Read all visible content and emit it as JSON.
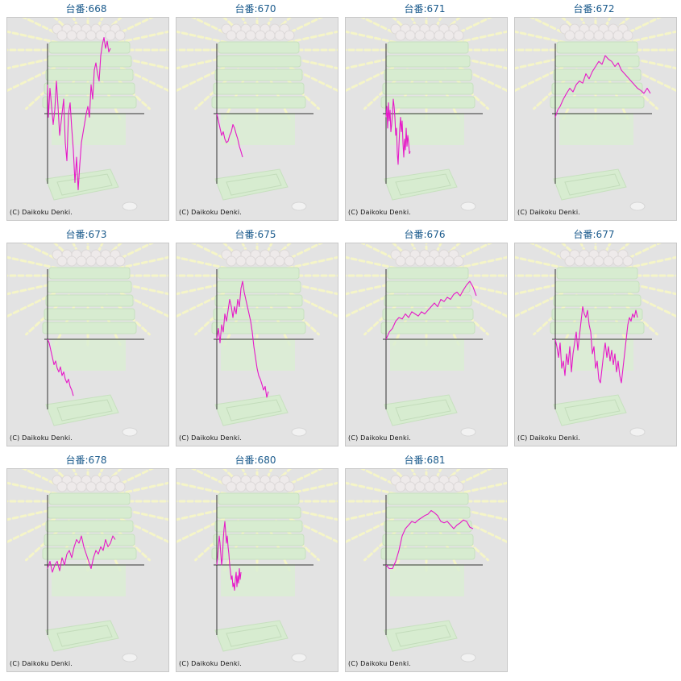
{
  "copyright": "(C) Daikoku Denki.",
  "colors": {
    "line": "#e619c8",
    "title": "#1a5a8c",
    "axis": "#333333",
    "background": "#e3e3e3"
  },
  "charts": [
    {
      "title": "台番:668"
    },
    {
      "title": "台番:670"
    },
    {
      "title": "台番:671"
    },
    {
      "title": "台番:672"
    },
    {
      "title": "台番:673"
    },
    {
      "title": "台番:675"
    },
    {
      "title": "台番:676"
    },
    {
      "title": "台番:677"
    },
    {
      "title": "台番:678"
    },
    {
      "title": "台番:680"
    },
    {
      "title": "台番:681"
    }
  ],
  "chart_data": [
    {
      "type": "line",
      "title": "台番:668",
      "grid": false,
      "points": [
        [
          0,
          40
        ],
        [
          1,
          -5
        ],
        [
          3,
          35
        ],
        [
          5,
          10
        ],
        [
          7,
          -15
        ],
        [
          9,
          5
        ],
        [
          11,
          45
        ],
        [
          13,
          10
        ],
        [
          15,
          -30
        ],
        [
          17,
          -10
        ],
        [
          20,
          20
        ],
        [
          22,
          -40
        ],
        [
          24,
          -65
        ],
        [
          26,
          0
        ],
        [
          28,
          15
        ],
        [
          30,
          -20
        ],
        [
          32,
          -50
        ],
        [
          34,
          -95
        ],
        [
          36,
          -60
        ],
        [
          38,
          -105
        ],
        [
          40,
          -70
        ],
        [
          42,
          -40
        ],
        [
          45,
          -20
        ],
        [
          48,
          0
        ],
        [
          50,
          10
        ],
        [
          52,
          -5
        ],
        [
          54,
          40
        ],
        [
          56,
          20
        ],
        [
          58,
          60
        ],
        [
          60,
          70
        ],
        [
          62,
          55
        ],
        [
          64,
          45
        ],
        [
          66,
          80
        ],
        [
          68,
          95
        ],
        [
          70,
          105
        ],
        [
          72,
          90
        ],
        [
          74,
          100
        ],
        [
          76,
          85
        ],
        [
          78,
          90
        ]
      ]
    },
    {
      "type": "line",
      "title": "台番:670",
      "grid": false,
      "points": [
        [
          0,
          0
        ],
        [
          2,
          -10
        ],
        [
          4,
          -20
        ],
        [
          6,
          -30
        ],
        [
          8,
          -25
        ],
        [
          10,
          -35
        ],
        [
          12,
          -40
        ],
        [
          14,
          -38
        ],
        [
          16,
          -30
        ],
        [
          18,
          -25
        ],
        [
          20,
          -15
        ],
        [
          22,
          -20
        ],
        [
          24,
          -28
        ],
        [
          26,
          -35
        ],
        [
          28,
          -45
        ],
        [
          30,
          -52
        ],
        [
          32,
          -60
        ]
      ]
    },
    {
      "type": "line",
      "title": "台番:671",
      "grid": false,
      "points": [
        [
          0,
          -5
        ],
        [
          1,
          10
        ],
        [
          2,
          -20
        ],
        [
          3,
          15
        ],
        [
          4,
          -10
        ],
        [
          5,
          5
        ],
        [
          6,
          -25
        ],
        [
          7,
          -15
        ],
        [
          8,
          0
        ],
        [
          9,
          20
        ],
        [
          10,
          10
        ],
        [
          11,
          -5
        ],
        [
          12,
          -30
        ],
        [
          13,
          -20
        ],
        [
          14,
          -55
        ],
        [
          15,
          -70
        ],
        [
          16,
          -45
        ],
        [
          17,
          -20
        ],
        [
          18,
          -5
        ],
        [
          19,
          -25
        ],
        [
          20,
          -10
        ],
        [
          21,
          -40
        ],
        [
          22,
          -60
        ],
        [
          23,
          -35
        ],
        [
          24,
          -50
        ],
        [
          25,
          -20
        ],
        [
          26,
          -45
        ],
        [
          27,
          -30
        ],
        [
          28,
          -40
        ],
        [
          29,
          -55
        ],
        [
          30,
          -52
        ]
      ]
    },
    {
      "type": "line",
      "title": "台番:672",
      "grid": false,
      "points": [
        [
          0,
          -5
        ],
        [
          3,
          5
        ],
        [
          6,
          10
        ],
        [
          10,
          20
        ],
        [
          14,
          28
        ],
        [
          18,
          35
        ],
        [
          22,
          30
        ],
        [
          26,
          40
        ],
        [
          30,
          45
        ],
        [
          34,
          42
        ],
        [
          38,
          55
        ],
        [
          42,
          48
        ],
        [
          46,
          58
        ],
        [
          50,
          65
        ],
        [
          54,
          72
        ],
        [
          58,
          68
        ],
        [
          62,
          80
        ],
        [
          66,
          75
        ],
        [
          70,
          72
        ],
        [
          74,
          65
        ],
        [
          78,
          70
        ],
        [
          82,
          60
        ],
        [
          86,
          55
        ],
        [
          90,
          50
        ],
        [
          94,
          45
        ],
        [
          98,
          40
        ],
        [
          102,
          35
        ],
        [
          106,
          32
        ],
        [
          110,
          28
        ],
        [
          114,
          35
        ],
        [
          118,
          28
        ]
      ]
    },
    {
      "type": "line",
      "title": "台番:673",
      "grid": false,
      "points": [
        [
          0,
          0
        ],
        [
          2,
          -5
        ],
        [
          4,
          -15
        ],
        [
          6,
          -25
        ],
        [
          8,
          -35
        ],
        [
          10,
          -30
        ],
        [
          12,
          -40
        ],
        [
          14,
          -45
        ],
        [
          16,
          -38
        ],
        [
          18,
          -50
        ],
        [
          20,
          -45
        ],
        [
          22,
          -55
        ],
        [
          24,
          -60
        ],
        [
          26,
          -55
        ],
        [
          28,
          -65
        ],
        [
          30,
          -70
        ],
        [
          32,
          -78
        ]
      ]
    },
    {
      "type": "line",
      "title": "台番:675",
      "grid": false,
      "points": [
        [
          0,
          0
        ],
        [
          2,
          15
        ],
        [
          4,
          -5
        ],
        [
          6,
          20
        ],
        [
          8,
          10
        ],
        [
          10,
          35
        ],
        [
          12,
          25
        ],
        [
          14,
          40
        ],
        [
          16,
          55
        ],
        [
          18,
          45
        ],
        [
          20,
          30
        ],
        [
          22,
          45
        ],
        [
          24,
          35
        ],
        [
          26,
          55
        ],
        [
          28,
          45
        ],
        [
          30,
          70
        ],
        [
          32,
          80
        ],
        [
          34,
          65
        ],
        [
          36,
          55
        ],
        [
          38,
          45
        ],
        [
          40,
          35
        ],
        [
          42,
          25
        ],
        [
          44,
          10
        ],
        [
          46,
          -10
        ],
        [
          48,
          -25
        ],
        [
          50,
          -40
        ],
        [
          52,
          -50
        ],
        [
          54,
          -55
        ],
        [
          56,
          -62
        ],
        [
          58,
          -70
        ],
        [
          60,
          -65
        ],
        [
          62,
          -80
        ],
        [
          64,
          -72
        ]
      ]
    },
    {
      "type": "line",
      "title": "台番:676",
      "grid": false,
      "points": [
        [
          0,
          0
        ],
        [
          4,
          10
        ],
        [
          8,
          15
        ],
        [
          12,
          25
        ],
        [
          16,
          30
        ],
        [
          20,
          28
        ],
        [
          24,
          35
        ],
        [
          28,
          30
        ],
        [
          32,
          38
        ],
        [
          36,
          35
        ],
        [
          40,
          32
        ],
        [
          44,
          38
        ],
        [
          48,
          35
        ],
        [
          52,
          40
        ],
        [
          56,
          45
        ],
        [
          60,
          50
        ],
        [
          64,
          45
        ],
        [
          68,
          55
        ],
        [
          72,
          52
        ],
        [
          76,
          58
        ],
        [
          80,
          55
        ],
        [
          84,
          62
        ],
        [
          88,
          65
        ],
        [
          92,
          60
        ],
        [
          96,
          68
        ],
        [
          100,
          75
        ],
        [
          104,
          80
        ],
        [
          108,
          72
        ],
        [
          112,
          60
        ]
      ]
    },
    {
      "type": "line",
      "title": "台番:677",
      "grid": false,
      "points": [
        [
          0,
          0
        ],
        [
          2,
          -10
        ],
        [
          4,
          -25
        ],
        [
          6,
          -5
        ],
        [
          8,
          -40
        ],
        [
          10,
          -30
        ],
        [
          12,
          -50
        ],
        [
          14,
          -20
        ],
        [
          16,
          -35
        ],
        [
          18,
          -10
        ],
        [
          20,
          -45
        ],
        [
          22,
          -20
        ],
        [
          24,
          -5
        ],
        [
          26,
          10
        ],
        [
          28,
          -15
        ],
        [
          30,
          5
        ],
        [
          32,
          25
        ],
        [
          34,
          45
        ],
        [
          36,
          35
        ],
        [
          38,
          30
        ],
        [
          40,
          40
        ],
        [
          42,
          20
        ],
        [
          44,
          10
        ],
        [
          46,
          -20
        ],
        [
          48,
          -10
        ],
        [
          50,
          -40
        ],
        [
          52,
          -30
        ],
        [
          54,
          -55
        ],
        [
          56,
          -60
        ],
        [
          58,
          -40
        ],
        [
          60,
          -20
        ],
        [
          62,
          -5
        ],
        [
          64,
          -25
        ],
        [
          66,
          -10
        ],
        [
          68,
          -30
        ],
        [
          70,
          -15
        ],
        [
          72,
          -35
        ],
        [
          74,
          -20
        ],
        [
          76,
          -45
        ],
        [
          78,
          -30
        ],
        [
          80,
          -50
        ],
        [
          82,
          -60
        ],
        [
          84,
          -40
        ],
        [
          86,
          -20
        ],
        [
          88,
          0
        ],
        [
          90,
          20
        ],
        [
          92,
          30
        ],
        [
          94,
          25
        ],
        [
          96,
          35
        ],
        [
          98,
          30
        ],
        [
          100,
          40
        ],
        [
          102,
          30
        ]
      ]
    },
    {
      "type": "line",
      "title": "台番:678",
      "grid": false,
      "points": [
        [
          0,
          -5
        ],
        [
          3,
          5
        ],
        [
          6,
          -10
        ],
        [
          9,
          0
        ],
        [
          12,
          5
        ],
        [
          15,
          -8
        ],
        [
          18,
          10
        ],
        [
          21,
          0
        ],
        [
          24,
          15
        ],
        [
          27,
          20
        ],
        [
          30,
          10
        ],
        [
          33,
          25
        ],
        [
          36,
          35
        ],
        [
          39,
          30
        ],
        [
          42,
          40
        ],
        [
          45,
          25
        ],
        [
          48,
          15
        ],
        [
          51,
          5
        ],
        [
          54,
          -5
        ],
        [
          57,
          10
        ],
        [
          60,
          20
        ],
        [
          63,
          15
        ],
        [
          66,
          25
        ],
        [
          69,
          20
        ],
        [
          72,
          35
        ],
        [
          75,
          25
        ],
        [
          78,
          30
        ],
        [
          81,
          40
        ],
        [
          84,
          35
        ]
      ]
    },
    {
      "type": "line",
      "title": "台番:680",
      "grid": false,
      "points": [
        [
          0,
          0
        ],
        [
          1,
          10
        ],
        [
          2,
          25
        ],
        [
          3,
          40
        ],
        [
          4,
          30
        ],
        [
          5,
          15
        ],
        [
          6,
          0
        ],
        [
          7,
          10
        ],
        [
          8,
          35
        ],
        [
          9,
          50
        ],
        [
          10,
          60
        ],
        [
          11,
          45
        ],
        [
          12,
          30
        ],
        [
          13,
          40
        ],
        [
          14,
          25
        ],
        [
          15,
          15
        ],
        [
          16,
          0
        ],
        [
          17,
          -10
        ],
        [
          18,
          -20
        ],
        [
          19,
          -15
        ],
        [
          20,
          -30
        ],
        [
          21,
          -25
        ],
        [
          22,
          -35
        ],
        [
          23,
          -20
        ],
        [
          24,
          -10
        ],
        [
          25,
          -30
        ],
        [
          26,
          -15
        ],
        [
          27,
          -25
        ],
        [
          28,
          -5
        ],
        [
          29,
          -20
        ],
        [
          30,
          -10
        ]
      ]
    },
    {
      "type": "line",
      "title": "台番:681",
      "grid": false,
      "points": [
        [
          0,
          0
        ],
        [
          4,
          -5
        ],
        [
          8,
          -5
        ],
        [
          12,
          5
        ],
        [
          16,
          20
        ],
        [
          20,
          40
        ],
        [
          24,
          50
        ],
        [
          28,
          55
        ],
        [
          32,
          60
        ],
        [
          36,
          58
        ],
        [
          40,
          62
        ],
        [
          44,
          65
        ],
        [
          48,
          68
        ],
        [
          52,
          70
        ],
        [
          56,
          75
        ],
        [
          60,
          72
        ],
        [
          64,
          68
        ],
        [
          68,
          60
        ],
        [
          72,
          58
        ],
        [
          76,
          60
        ],
        [
          80,
          55
        ],
        [
          84,
          50
        ],
        [
          88,
          55
        ],
        [
          92,
          58
        ],
        [
          96,
          62
        ],
        [
          100,
          60
        ],
        [
          104,
          52
        ],
        [
          108,
          50
        ]
      ]
    }
  ]
}
